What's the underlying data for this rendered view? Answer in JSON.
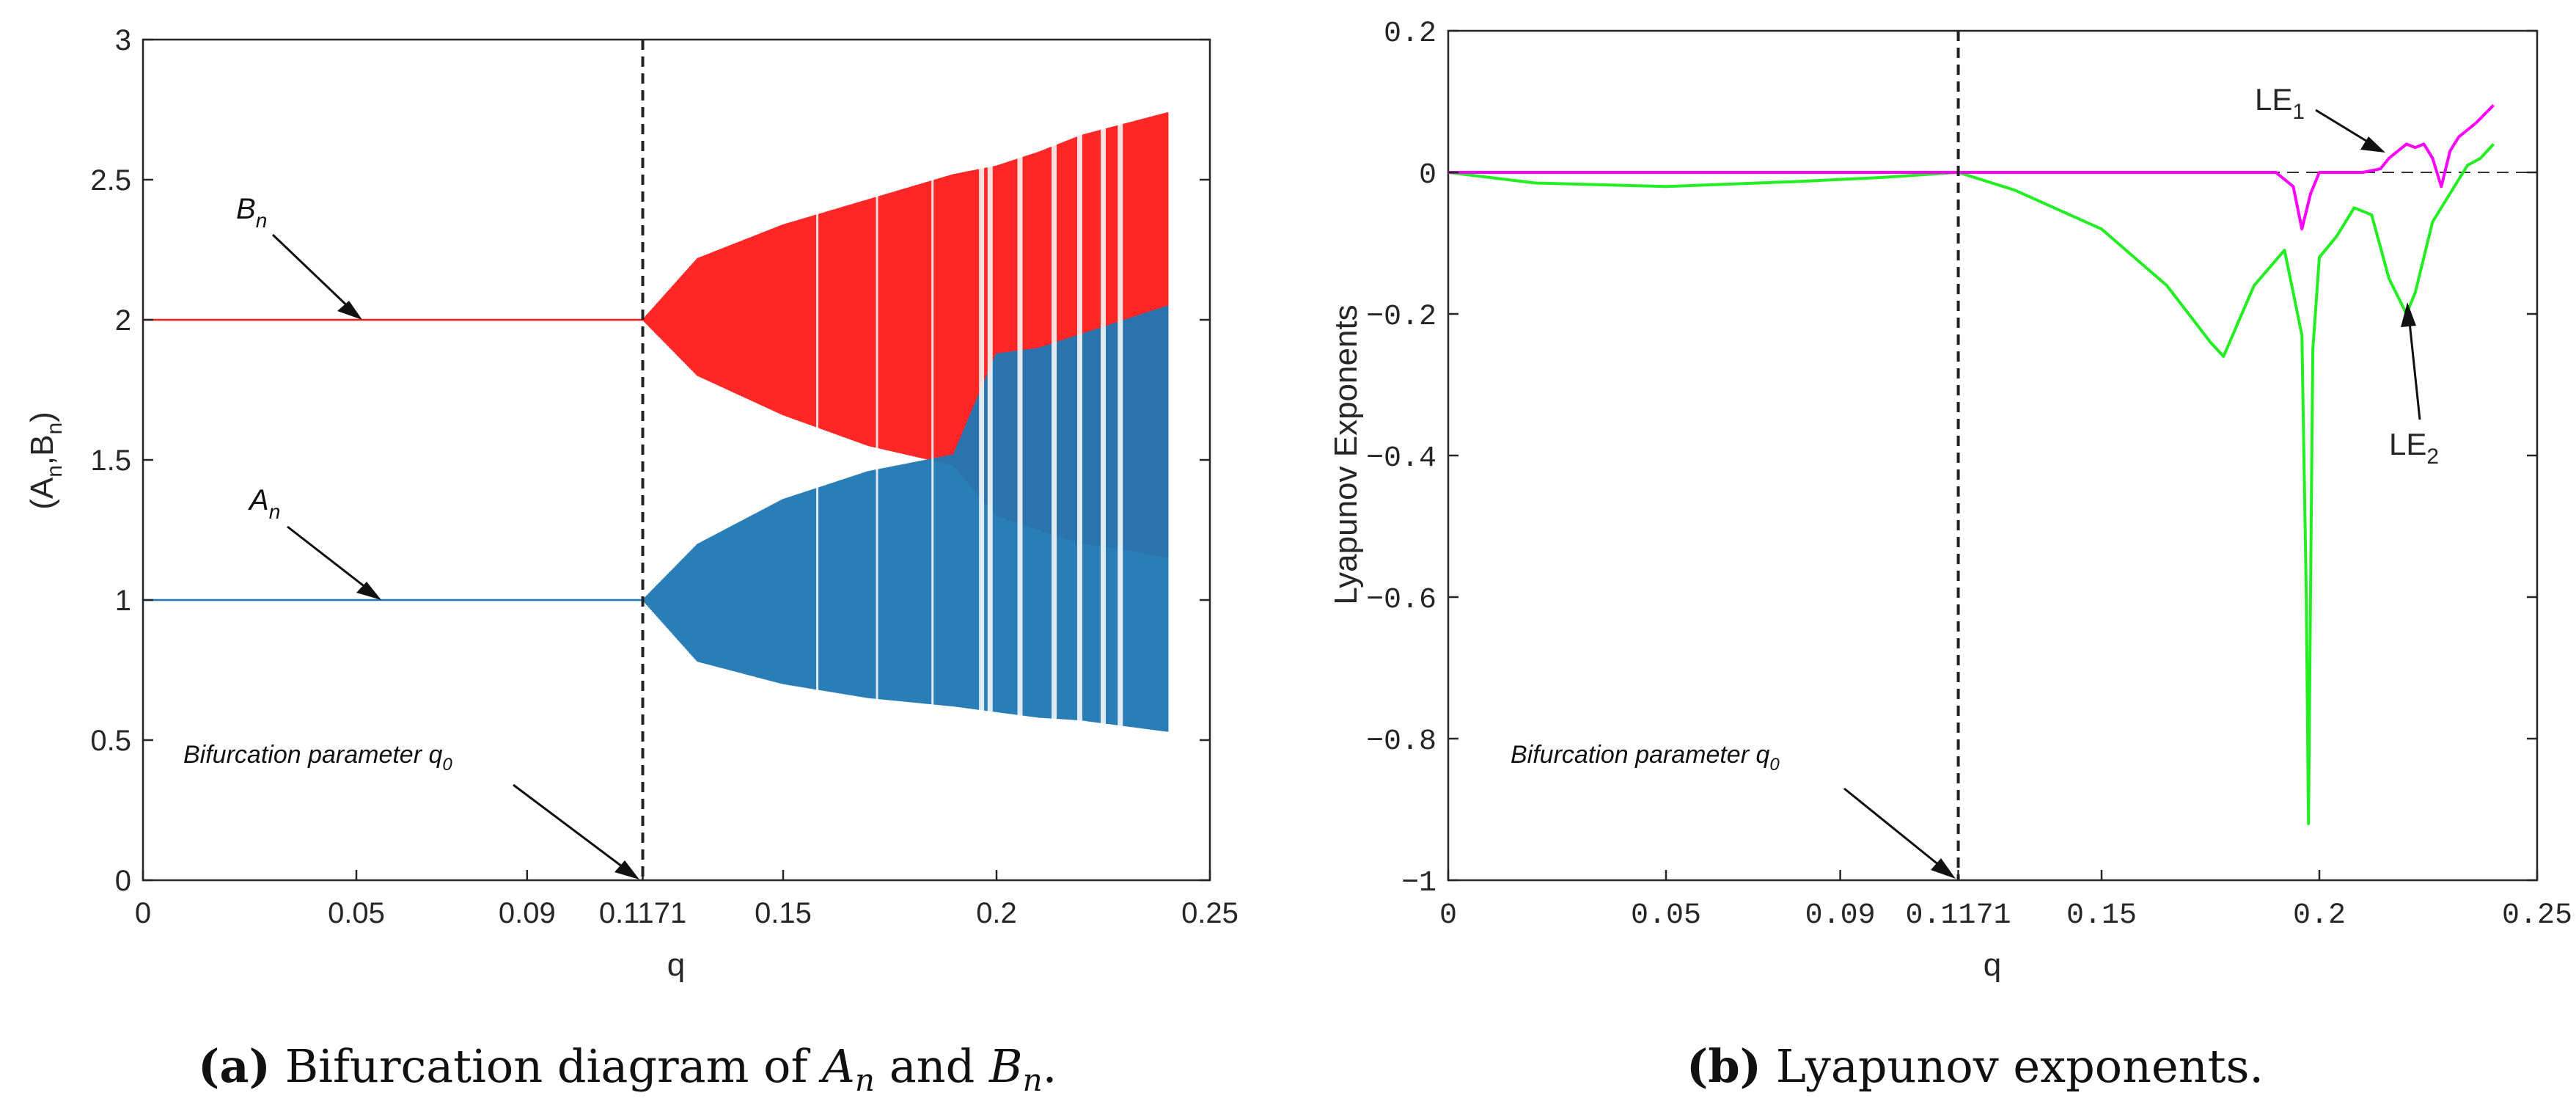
{
  "chart_data": [
    {
      "type": "scatter",
      "panel": "a",
      "title": "",
      "xlabel": "q",
      "ylabel": "(A_n, B_n)",
      "ylabel_parts": {
        "open": "(A",
        "sub1": "n",
        "mid": ",B",
        "sub2": "n",
        "close": ")"
      },
      "xlim": [
        0,
        0.25
      ],
      "ylim": [
        0,
        3
      ],
      "xticks": [
        0,
        0.05,
        0.09,
        0.1171,
        0.15,
        0.2,
        0.25
      ],
      "xtick_labels": [
        "0",
        "0.05",
        "0.09",
        "0.1171",
        "0.15",
        "0.2",
        "0.25"
      ],
      "yticks": [
        0,
        0.5,
        1,
        1.5,
        2,
        2.5,
        3
      ],
      "ytick_labels": [
        "0",
        "0.5",
        "1",
        "1.5",
        "2",
        "2.5",
        "3"
      ],
      "bifurcation_q": 0.1171,
      "q_end": 0.24,
      "colors": {
        "A": "#1f77b4",
        "B": "#ff1a1a"
      },
      "series": [
        {
          "name": "A_n",
          "label_base": "A",
          "label_sub": "n",
          "color": "#1f77b4",
          "fixed_value": 1.0,
          "envelope_q": [
            0.1171,
            0.13,
            0.15,
            0.17,
            0.19,
            0.2,
            0.21,
            0.22,
            0.23,
            0.24
          ],
          "envelope_max": [
            1.0,
            1.2,
            1.36,
            1.46,
            1.52,
            1.88,
            1.9,
            1.95,
            2.0,
            2.05
          ],
          "envelope_min": [
            1.0,
            0.78,
            0.7,
            0.65,
            0.62,
            0.6,
            0.58,
            0.57,
            0.55,
            0.53
          ]
        },
        {
          "name": "B_n",
          "label_base": "B",
          "label_sub": "n",
          "color": "#ff1a1a",
          "fixed_value": 2.0,
          "envelope_q": [
            0.1171,
            0.13,
            0.15,
            0.17,
            0.19,
            0.2,
            0.21,
            0.22,
            0.23,
            0.24
          ],
          "envelope_max": [
            2.0,
            2.22,
            2.34,
            2.43,
            2.52,
            2.55,
            2.6,
            2.66,
            2.7,
            2.74
          ],
          "envelope_min": [
            2.0,
            1.8,
            1.66,
            1.55,
            1.48,
            1.3,
            1.25,
            1.2,
            1.18,
            1.15
          ]
        }
      ],
      "annotations": [
        {
          "text": "Bifurcation parameter q",
          "sub": "0"
        }
      ],
      "caption": {
        "bold": "(a)",
        "pre": "Bifurcation diagram of",
        "var1": "A",
        "sub1": "n",
        "and": "and",
        "var2": "B",
        "sub2": "n",
        "end": "."
      }
    },
    {
      "type": "line",
      "panel": "b",
      "title": "",
      "xlabel": "q",
      "ylabel": "Lyapunov Exponents",
      "xlim": [
        0,
        0.25
      ],
      "ylim": [
        -1,
        0.2
      ],
      "xticks": [
        0,
        0.05,
        0.09,
        0.1171,
        0.15,
        0.2,
        0.25
      ],
      "xtick_labels": [
        "0",
        "0.05",
        "0.09",
        "0.1171",
        "0.15",
        "0.2",
        "0.25"
      ],
      "yticks": [
        -1,
        -0.8,
        -0.6,
        -0.4,
        -0.2,
        0,
        0.2
      ],
      "ytick_labels": [
        "−1",
        "−0.8",
        "−0.6",
        "−0.4",
        "−0.2",
        "0",
        "0.2"
      ],
      "bifurcation_q": 0.1171,
      "series": [
        {
          "name": "LE1",
          "label_base": "LE",
          "label_sub": "1",
          "color": "#ff00ff",
          "x": [
            0,
            0.1171,
            0.19,
            0.194,
            0.196,
            0.198,
            0.2,
            0.204,
            0.21,
            0.214,
            0.216,
            0.218,
            0.22,
            0.222,
            0.224,
            0.226,
            0.228,
            0.23,
            0.232,
            0.236,
            0.24
          ],
          "y": [
            0,
            0,
            0,
            -0.02,
            -0.08,
            -0.03,
            0,
            0,
            0,
            0.005,
            0.02,
            0.03,
            0.04,
            0.035,
            0.04,
            0.02,
            -0.02,
            0.03,
            0.05,
            0.07,
            0.095
          ]
        },
        {
          "name": "LE2",
          "label_base": "LE",
          "label_sub": "2",
          "color": "#22ee22",
          "x": [
            0,
            0.02,
            0.05,
            0.08,
            0.1,
            0.1171,
            0.13,
            0.15,
            0.165,
            0.175,
            0.178,
            0.185,
            0.192,
            0.196,
            0.197,
            0.1975,
            0.198,
            0.1985,
            0.2,
            0.204,
            0.208,
            0.212,
            0.216,
            0.22,
            0.222,
            0.226,
            0.23,
            0.234,
            0.237,
            0.24
          ],
          "y": [
            0,
            -0.015,
            -0.02,
            -0.013,
            -0.007,
            0,
            -0.025,
            -0.08,
            -0.16,
            -0.24,
            -0.26,
            -0.16,
            -0.11,
            -0.23,
            -0.6,
            -0.92,
            -0.58,
            -0.25,
            -0.12,
            -0.09,
            -0.05,
            -0.06,
            -0.15,
            -0.2,
            -0.17,
            -0.07,
            -0.03,
            0.01,
            0.02,
            0.04
          ]
        }
      ],
      "reference_line_y": 0,
      "annotations": [
        {
          "text": "Bifurcation parameter q",
          "sub": "0"
        }
      ],
      "caption": {
        "bold": "(b)",
        "text": "Lyapunov exponents."
      }
    }
  ]
}
